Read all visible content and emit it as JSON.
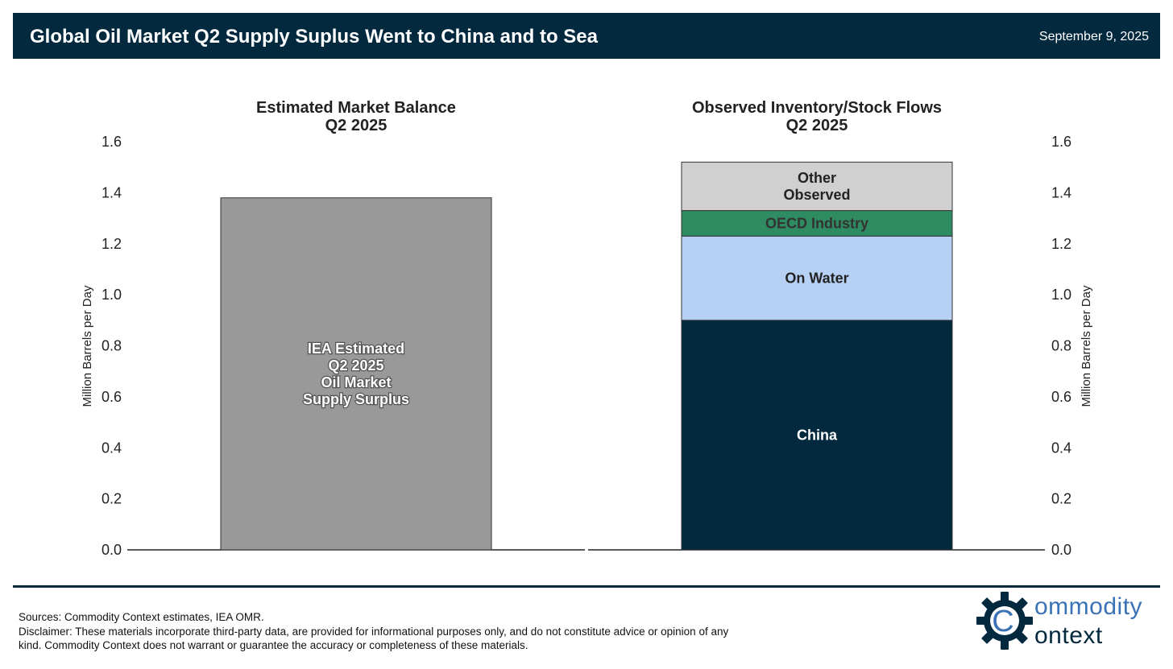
{
  "header": {
    "title": "Global Oil Market Q2 Supply Suplus Went to China and to Sea",
    "date": "September 9, 2025"
  },
  "colors": {
    "navy": "#03293f",
    "iea_gray": "#999999",
    "other_gray": "#d0d0d0",
    "oecd_green": "#2e8b62",
    "water_blue": "#b7d1f5"
  },
  "chart_data": [
    {
      "type": "bar",
      "title": "Estimated Market Balance",
      "subtitle": "Q2 2025",
      "ylabel": "Million Barrels per Day",
      "ylim": [
        0,
        1.6
      ],
      "yticks": [
        "0.0",
        "0.2",
        "0.4",
        "0.6",
        "0.8",
        "1.0",
        "1.2",
        "1.4",
        "1.6"
      ],
      "series": [
        {
          "name": "IEA Estimated Q2 2025 Oil Market Supply Surplus",
          "label_lines": [
            "IEA Estimated",
            "Q2 2025",
            "Oil Market",
            "Supply Surplus"
          ],
          "value": 1.38,
          "color": "#999999"
        }
      ]
    },
    {
      "type": "bar",
      "stacked": true,
      "title": "Observed Inventory/Stock Flows",
      "subtitle": "Q2 2025",
      "ylabel": "Million Barrels per Day",
      "ylim": [
        0,
        1.6
      ],
      "yticks": [
        "0.0",
        "0.2",
        "0.4",
        "0.6",
        "0.8",
        "1.0",
        "1.2",
        "1.4",
        "1.6"
      ],
      "series": [
        {
          "name": "China",
          "label_lines": [
            "China"
          ],
          "value": 0.9,
          "color": "#03293f",
          "text_color": "#ffffff"
        },
        {
          "name": "On Water",
          "label_lines": [
            "On Water"
          ],
          "value": 0.33,
          "color": "#b7d1f5",
          "text_color": "#222222"
        },
        {
          "name": "OECD Industry",
          "label_lines": [
            "OECD Industry"
          ],
          "value": 0.1,
          "color": "#2e8b62",
          "text_color": "#333333"
        },
        {
          "name": "Other Observed",
          "label_lines": [
            "Other",
            "Observed"
          ],
          "value": 0.19,
          "color": "#d0d0d0",
          "text_color": "#222222"
        }
      ]
    }
  ],
  "footer": {
    "sources": "Sources: Commodity Context estimates, IEA OMR.",
    "disclaimer": "Disclaimer: These materials incorporate third-party data, are provided for informational purposes only, and do not constitute advice or opinion of any kind. Commodity Context does not warrant or guarantee the accuracy or completeness of these materials.",
    "logo_word1": "ommodity",
    "logo_word2": "ontext",
    "logo_letter": "C"
  }
}
